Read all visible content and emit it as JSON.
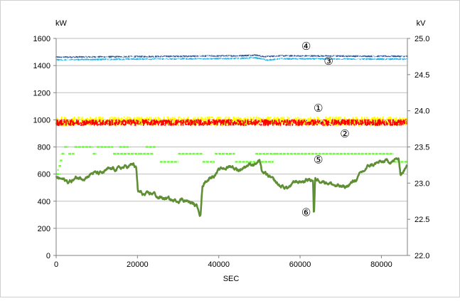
{
  "chart_data": {
    "type": "line",
    "xlabel": "SEC",
    "y_left_unit": "kW",
    "y_right_unit": "kV",
    "xlim": [
      0,
      86400
    ],
    "x_ticks": [
      0,
      20000,
      40000,
      60000,
      80000
    ],
    "y_left_lim": [
      0,
      1600
    ],
    "y_left_ticks": [
      0,
      200,
      400,
      600,
      800,
      1000,
      1200,
      1400,
      1600
    ],
    "y_right_lim": [
      22.0,
      25.0
    ],
    "y_right_ticks": [
      "22.0",
      "22.5",
      "23.0",
      "23.5",
      "24.0",
      "24.5",
      "25.0"
    ],
    "grid": "horizontal",
    "colors": {
      "s1": "#ff0000",
      "s2": "#ffff00",
      "s3": "#22b0e8",
      "s4": "#2f5597",
      "s5": "#66ff33",
      "s6": "#5f8f35",
      "grid": "#bfbfbf"
    },
    "markers": [
      {
        "label": "①",
        "series": "s1",
        "x": 64500,
        "y": 1060
      },
      {
        "label": "②",
        "series": "s2",
        "x": 71000,
        "y": 870
      },
      {
        "label": "③",
        "series": "s3",
        "x": 67000,
        "y": 1405
      },
      {
        "label": "④",
        "series": "s4",
        "x": 61500,
        "y": 1515
      },
      {
        "label": "⑤",
        "series": "s5",
        "x": 64500,
        "y": 680
      },
      {
        "label": "⑥",
        "series": "s6",
        "x": 61500,
        "y": 290
      }
    ],
    "series": [
      {
        "id": "s4",
        "axis": "left",
        "style": "band",
        "noise": 7,
        "points": [
          [
            0,
            1462
          ],
          [
            20000,
            1466
          ],
          [
            45000,
            1472
          ],
          [
            49000,
            1478
          ],
          [
            51000,
            1465
          ],
          [
            55000,
            1472
          ],
          [
            86400,
            1468
          ]
        ]
      },
      {
        "id": "s3",
        "axis": "left",
        "style": "band",
        "noise": 7,
        "points": [
          [
            0,
            1442
          ],
          [
            20000,
            1448
          ],
          [
            45000,
            1452
          ],
          [
            49000,
            1458
          ],
          [
            52000,
            1440
          ],
          [
            55000,
            1450
          ],
          [
            86400,
            1447
          ]
        ]
      },
      {
        "id": "s2",
        "axis": "left",
        "style": "band",
        "noise": 35,
        "points": [
          [
            0,
            990
          ],
          [
            86400,
            990
          ]
        ]
      },
      {
        "id": "s1",
        "axis": "left",
        "style": "band",
        "noise": 25,
        "points": [
          [
            0,
            980
          ],
          [
            86400,
            980
          ]
        ]
      },
      {
        "id": "s5",
        "axis": "left",
        "style": "steps",
        "segments": [
          [
            0,
            1000,
            600
          ],
          [
            300,
            600,
            630
          ],
          [
            600,
            1200,
            660
          ],
          [
            900,
            1500,
            700
          ],
          [
            1300,
            2000,
            750
          ],
          [
            2000,
            3000,
            800
          ],
          [
            3000,
            4500,
            750
          ],
          [
            4500,
            9000,
            800
          ],
          [
            9000,
            10000,
            750
          ],
          [
            10000,
            14000,
            800
          ],
          [
            14000,
            20500,
            750
          ],
          [
            15500,
            17800,
            800
          ],
          [
            20500,
            24000,
            750
          ],
          [
            22000,
            24500,
            800
          ],
          [
            25500,
            30000,
            690
          ],
          [
            30000,
            36000,
            750
          ],
          [
            36000,
            39000,
            690
          ],
          [
            39000,
            44000,
            750
          ],
          [
            44000,
            49000,
            690
          ],
          [
            49000,
            54000,
            750
          ],
          [
            49500,
            53500,
            690
          ],
          [
            54000,
            83000,
            750
          ],
          [
            83000,
            86400,
            690
          ]
        ]
      },
      {
        "id": "s6",
        "axis": "left",
        "style": "line",
        "noise": 18,
        "points": [
          [
            0,
            580
          ],
          [
            1500,
            560
          ],
          [
            3000,
            540
          ],
          [
            5000,
            570
          ],
          [
            7000,
            580
          ],
          [
            9000,
            610
          ],
          [
            11000,
            600
          ],
          [
            13000,
            630
          ],
          [
            15000,
            640
          ],
          [
            17000,
            650
          ],
          [
            19000,
            670
          ],
          [
            19700,
            640
          ],
          [
            20100,
            470
          ],
          [
            22000,
            440
          ],
          [
            24000,
            460
          ],
          [
            25000,
            430
          ],
          [
            27000,
            420
          ],
          [
            29000,
            400
          ],
          [
            31000,
            420
          ],
          [
            33000,
            390
          ],
          [
            35000,
            350
          ],
          [
            35500,
            300
          ],
          [
            36000,
            520
          ],
          [
            37000,
            560
          ],
          [
            39000,
            600
          ],
          [
            41000,
            640
          ],
          [
            43000,
            660
          ],
          [
            45000,
            630
          ],
          [
            47000,
            670
          ],
          [
            49000,
            680
          ],
          [
            50000,
            700
          ],
          [
            50500,
            620
          ],
          [
            53000,
            560
          ],
          [
            55000,
            510
          ],
          [
            57000,
            500
          ],
          [
            59000,
            540
          ],
          [
            61000,
            550
          ],
          [
            62000,
            560
          ],
          [
            63200,
            560
          ],
          [
            63400,
            270
          ],
          [
            63700,
            560
          ],
          [
            65000,
            560
          ],
          [
            67000,
            540
          ],
          [
            69000,
            510
          ],
          [
            71000,
            500
          ],
          [
            73000,
            540
          ],
          [
            75000,
            600
          ],
          [
            77000,
            660
          ],
          [
            79000,
            680
          ],
          [
            81000,
            690
          ],
          [
            83000,
            700
          ],
          [
            84200,
            710
          ],
          [
            84700,
            600
          ],
          [
            86400,
            660
          ]
        ]
      }
    ]
  }
}
